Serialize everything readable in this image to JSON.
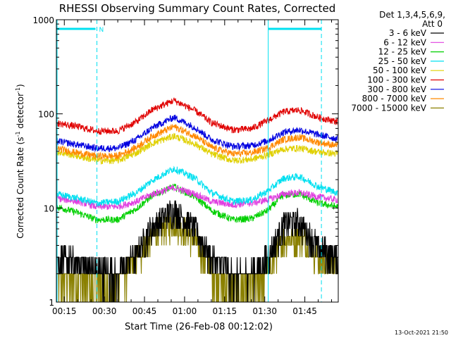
{
  "chart_data": {
    "type": "line",
    "title": "RHESSI Observing Summary Count Rates, Corrected",
    "xlabel": "Start Time (26-Feb-08 00:12:02)",
    "ylabel_main": "Corrected Count Rate (s",
    "ylabel_sup1": "-1",
    "ylabel_mid": " detector",
    "ylabel_sup2": "-1",
    "ylabel_end": ")",
    "yscale": "log",
    "xlim_minutes": [
      12.03,
      117.5
    ],
    "ylim": [
      1,
      1000
    ],
    "x_ticks": [
      {
        "min": 15,
        "label": "00:15"
      },
      {
        "min": 30,
        "label": "00:30"
      },
      {
        "min": 45,
        "label": "00:45"
      },
      {
        "min": 60,
        "label": "01:00"
      },
      {
        "min": 75,
        "label": "01:15"
      },
      {
        "min": 90,
        "label": "01:30"
      },
      {
        "min": 105,
        "label": "01:45"
      }
    ],
    "y_ticks": [
      {
        "value": 1,
        "label": "1"
      },
      {
        "value": 10,
        "label": "10"
      },
      {
        "value": 100,
        "label": "100"
      },
      {
        "value": 1000,
        "label": "1000"
      }
    ],
    "legend": {
      "position": "top-right, outside",
      "header1": "Det 1,3,4,5,6,9,",
      "header2": "Att 0"
    },
    "night_flag": {
      "label": "N"
    },
    "saa_markers_minutes": [
      12.3,
      27.2,
      91.3,
      111.2
    ],
    "series": [
      {
        "name": "3 - 6 keV",
        "color": "#000000",
        "max_points": [
          [
            12,
            3.5
          ],
          [
            20,
            3.0
          ],
          [
            27,
            2.6
          ],
          [
            35,
            2.3
          ],
          [
            42,
            4
          ],
          [
            48,
            7.5
          ],
          [
            56,
            11.5
          ],
          [
            64,
            7
          ],
          [
            70,
            3.5
          ],
          [
            78,
            2.2
          ],
          [
            85,
            2.4
          ],
          [
            91,
            3.5
          ],
          [
            97,
            8
          ],
          [
            103,
            8.5
          ],
          [
            110,
            4.5
          ],
          [
            117,
            3.6
          ]
        ]
      },
      {
        "name": "6 - 12 keV",
        "color": "#e040e0",
        "max_points": [
          [
            12,
            13.5
          ],
          [
            20,
            12.5
          ],
          [
            27,
            11
          ],
          [
            35,
            11
          ],
          [
            42,
            12.5
          ],
          [
            48,
            15
          ],
          [
            56,
            17.5
          ],
          [
            64,
            15
          ],
          [
            70,
            12.5
          ],
          [
            78,
            11.5
          ],
          [
            85,
            12
          ],
          [
            91,
            13
          ],
          [
            97,
            15
          ],
          [
            103,
            15.5
          ],
          [
            110,
            14
          ],
          [
            117,
            13
          ]
        ]
      },
      {
        "name": "12 - 25 keV",
        "color": "#00d000",
        "max_points": [
          [
            12,
            11
          ],
          [
            20,
            9.5
          ],
          [
            27,
            8
          ],
          [
            35,
            8
          ],
          [
            42,
            10.5
          ],
          [
            48,
            14.5
          ],
          [
            56,
            18
          ],
          [
            64,
            14
          ],
          [
            70,
            10
          ],
          [
            78,
            8
          ],
          [
            85,
            8.2
          ],
          [
            91,
            10
          ],
          [
            97,
            14.5
          ],
          [
            103,
            15
          ],
          [
            110,
            12
          ],
          [
            117,
            11
          ]
        ]
      },
      {
        "name": "25 - 50 keV",
        "color": "#00e0f0",
        "max_points": [
          [
            12,
            15
          ],
          [
            20,
            13.5
          ],
          [
            27,
            12
          ],
          [
            35,
            12.5
          ],
          [
            42,
            15.5
          ],
          [
            48,
            21
          ],
          [
            56,
            28
          ],
          [
            64,
            22
          ],
          [
            70,
            15.5
          ],
          [
            78,
            12.5
          ],
          [
            85,
            13
          ],
          [
            91,
            16
          ],
          [
            97,
            22
          ],
          [
            103,
            23
          ],
          [
            110,
            18
          ],
          [
            117,
            15.5
          ]
        ]
      },
      {
        "name": "50 - 100 keV",
        "color": "#e0d000",
        "max_points": [
          [
            12,
            42
          ],
          [
            20,
            38
          ],
          [
            27,
            34
          ],
          [
            35,
            34
          ],
          [
            42,
            41
          ],
          [
            48,
            52
          ],
          [
            56,
            62
          ],
          [
            64,
            51
          ],
          [
            70,
            40
          ],
          [
            78,
            34
          ],
          [
            85,
            35
          ],
          [
            91,
            39
          ],
          [
            97,
            45
          ],
          [
            103,
            46
          ],
          [
            110,
            42
          ],
          [
            117,
            40
          ]
        ]
      },
      {
        "name": "100 - 300 keV",
        "color": "#e00000",
        "max_points": [
          [
            12,
            85
          ],
          [
            20,
            78
          ],
          [
            27,
            70
          ],
          [
            35,
            70
          ],
          [
            42,
            88
          ],
          [
            48,
            118
          ],
          [
            56,
            148
          ],
          [
            64,
            115
          ],
          [
            70,
            86
          ],
          [
            78,
            72
          ],
          [
            85,
            74
          ],
          [
            91,
            90
          ],
          [
            97,
            112
          ],
          [
            103,
            117
          ],
          [
            110,
            98
          ],
          [
            117,
            88
          ]
        ]
      },
      {
        "name": "300 - 800 keV",
        "color": "#0000e0",
        "max_points": [
          [
            12,
            55
          ],
          [
            20,
            50
          ],
          [
            27,
            46
          ],
          [
            35,
            46
          ],
          [
            42,
            57
          ],
          [
            48,
            76
          ],
          [
            56,
            98
          ],
          [
            64,
            76
          ],
          [
            70,
            57
          ],
          [
            78,
            48
          ],
          [
            85,
            49
          ],
          [
            91,
            55
          ],
          [
            97,
            68
          ],
          [
            103,
            72
          ],
          [
            110,
            64
          ],
          [
            117,
            58
          ]
        ]
      },
      {
        "name": "800 - 7000 keV",
        "color": "#ff8800",
        "max_points": [
          [
            12,
            46
          ],
          [
            20,
            41
          ],
          [
            27,
            38
          ],
          [
            35,
            38
          ],
          [
            42,
            47
          ],
          [
            48,
            62
          ],
          [
            56,
            78
          ],
          [
            64,
            62
          ],
          [
            70,
            47
          ],
          [
            78,
            40
          ],
          [
            85,
            41
          ],
          [
            91,
            46
          ],
          [
            97,
            57
          ],
          [
            103,
            60
          ],
          [
            110,
            53
          ],
          [
            117,
            49
          ]
        ]
      },
      {
        "name": "7000 - 15000 keV",
        "color": "#8a8000",
        "max_points": [
          [
            12,
            2.2
          ],
          [
            20,
            1.9
          ],
          [
            27,
            1.7
          ],
          [
            35,
            1.8
          ],
          [
            42,
            3.5
          ],
          [
            48,
            6
          ],
          [
            56,
            8.5
          ],
          [
            64,
            5.5
          ],
          [
            70,
            2.5
          ],
          [
            78,
            1.6
          ],
          [
            85,
            1.7
          ],
          [
            91,
            2.5
          ],
          [
            97,
            5.5
          ],
          [
            103,
            6
          ],
          [
            110,
            3.5
          ],
          [
            117,
            2.8
          ]
        ]
      }
    ]
  },
  "footer_date": "13-Oct-2021 21:50"
}
